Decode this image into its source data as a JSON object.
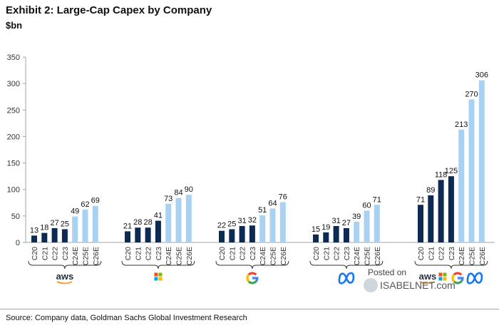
{
  "header": {
    "title": "Exhibit 2: Large-Cap Capex by Company",
    "unit": "$bn"
  },
  "footer": {
    "source": "Source: Company data, Goldman Sachs Global Investment Research"
  },
  "watermark": {
    "line1": "Posted on",
    "line2": "ISABELNET.com"
  },
  "colors": {
    "actual": "#0d2a52",
    "estimate": "#a9d2f2",
    "axis": "#9aa4ad",
    "aws_orange": "#f29a1e",
    "google_blue": "#4285f4",
    "google_red": "#ea4335",
    "google_yellow": "#fbbc05",
    "google_green": "#34a853",
    "meta_blue": "#1877f2"
  },
  "chart_data": {
    "type": "bar",
    "ylim": [
      0,
      350
    ],
    "yticks": [
      0,
      50,
      100,
      150,
      200,
      250,
      300,
      350
    ],
    "categories": [
      "C20",
      "C21",
      "C22",
      "C23",
      "C24E",
      "C25E",
      "C26E"
    ],
    "estimate_categories": [
      "C24E",
      "C25E",
      "C26E"
    ],
    "groups": [
      {
        "logo": "aws-icon",
        "values": [
          13,
          18,
          27,
          25,
          49,
          62,
          69
        ]
      },
      {
        "logo": "microsoft-icon",
        "values": [
          21,
          28,
          28,
          41,
          73,
          84,
          90
        ]
      },
      {
        "logo": "google-icon",
        "values": [
          22,
          25,
          31,
          32,
          51,
          64,
          76
        ]
      },
      {
        "logo": "meta-icon",
        "values": [
          15,
          19,
          31,
          27,
          39,
          60,
          71
        ]
      },
      {
        "logo": "all-companies-icons",
        "values": [
          71,
          89,
          118,
          125,
          213,
          270,
          306
        ]
      }
    ]
  }
}
